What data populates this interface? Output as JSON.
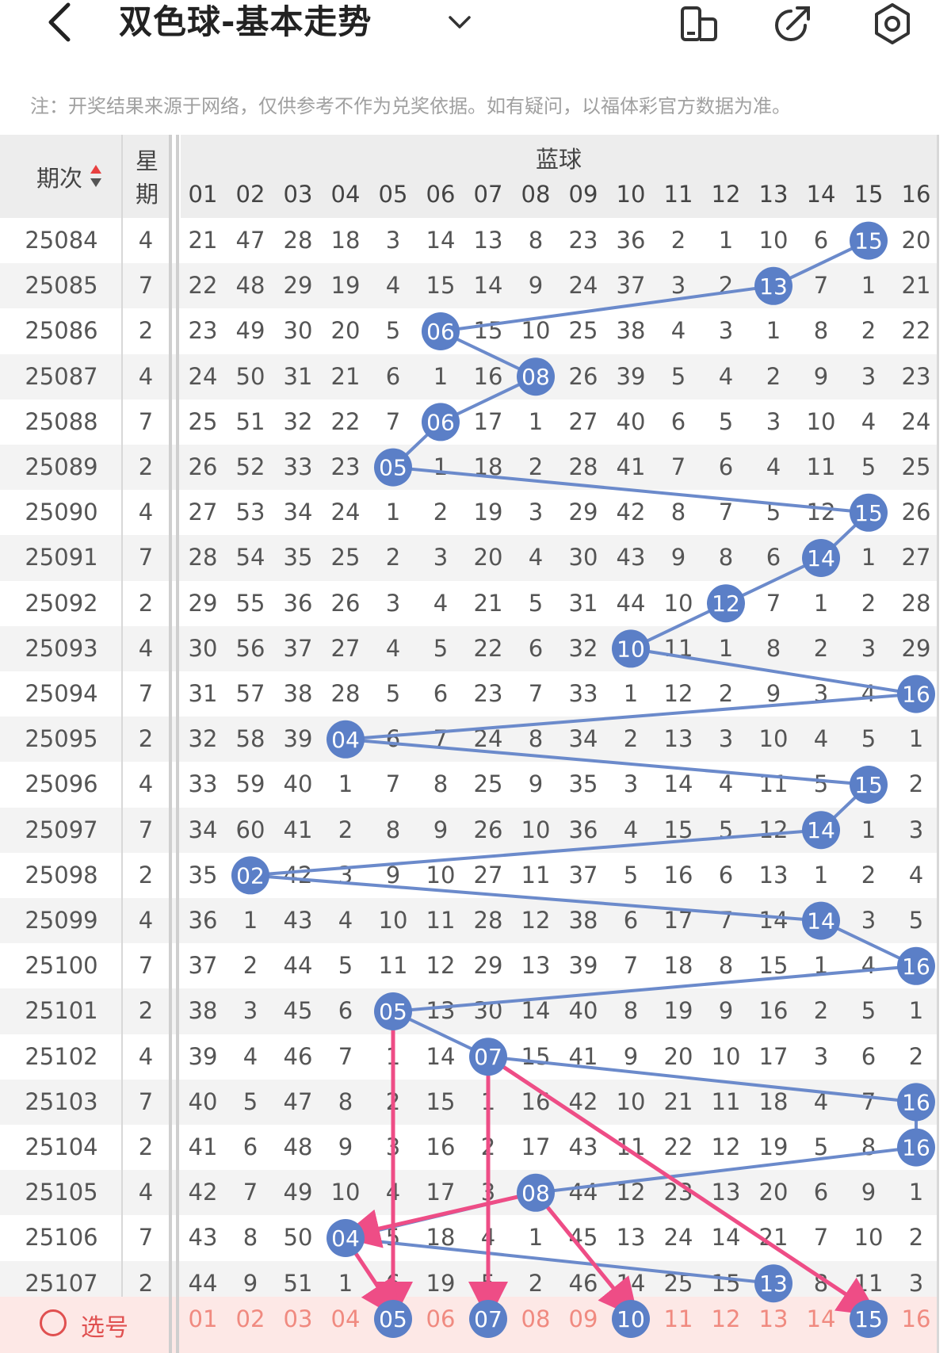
{
  "header": {
    "title": "双色球-基本走势",
    "notice": "注：开奖结果来源于网络，仅供参考不作为兑奖依据。如有疑问，以福体彩官方数据为准。"
  },
  "table": {
    "col_issue_label": "期次",
    "col_week_label_1": "星",
    "col_week_label_2": "期",
    "blue_label": "蓝球",
    "numbers": [
      "01",
      "02",
      "03",
      "04",
      "05",
      "06",
      "07",
      "08",
      "09",
      "10",
      "11",
      "12",
      "13",
      "14",
      "15",
      "16"
    ],
    "rows": [
      {
        "issue": "25084",
        "week": "4",
        "cells": [
          "21",
          "47",
          "28",
          "18",
          "3",
          "14",
          "13",
          "8",
          "23",
          "36",
          "2",
          "1",
          "10",
          "6",
          "15",
          "20"
        ],
        "hit": 15
      },
      {
        "issue": "25085",
        "week": "7",
        "cells": [
          "22",
          "48",
          "29",
          "19",
          "4",
          "15",
          "14",
          "9",
          "24",
          "37",
          "3",
          "2",
          "13",
          "7",
          "1",
          "21"
        ],
        "hit": 13
      },
      {
        "issue": "25086",
        "week": "2",
        "cells": [
          "23",
          "49",
          "30",
          "20",
          "5",
          "06",
          "15",
          "10",
          "25",
          "38",
          "4",
          "3",
          "1",
          "8",
          "2",
          "22"
        ],
        "hit": 6
      },
      {
        "issue": "25087",
        "week": "4",
        "cells": [
          "24",
          "50",
          "31",
          "21",
          "6",
          "1",
          "16",
          "08",
          "26",
          "39",
          "5",
          "4",
          "2",
          "9",
          "3",
          "23"
        ],
        "hit": 8
      },
      {
        "issue": "25088",
        "week": "7",
        "cells": [
          "25",
          "51",
          "32",
          "22",
          "7",
          "06",
          "17",
          "1",
          "27",
          "40",
          "6",
          "5",
          "3",
          "10",
          "4",
          "24"
        ],
        "hit": 6
      },
      {
        "issue": "25089",
        "week": "2",
        "cells": [
          "26",
          "52",
          "33",
          "23",
          "05",
          "1",
          "18",
          "2",
          "28",
          "41",
          "7",
          "6",
          "4",
          "11",
          "5",
          "25"
        ],
        "hit": 5
      },
      {
        "issue": "25090",
        "week": "4",
        "cells": [
          "27",
          "53",
          "34",
          "24",
          "1",
          "2",
          "19",
          "3",
          "29",
          "42",
          "8",
          "7",
          "5",
          "12",
          "15",
          "26"
        ],
        "hit": 15
      },
      {
        "issue": "25091",
        "week": "7",
        "cells": [
          "28",
          "54",
          "35",
          "25",
          "2",
          "3",
          "20",
          "4",
          "30",
          "43",
          "9",
          "8",
          "6",
          "14",
          "1",
          "27"
        ],
        "hit": 14
      },
      {
        "issue": "25092",
        "week": "2",
        "cells": [
          "29",
          "55",
          "36",
          "26",
          "3",
          "4",
          "21",
          "5",
          "31",
          "44",
          "10",
          "12",
          "7",
          "1",
          "2",
          "28"
        ],
        "hit": 12
      },
      {
        "issue": "25093",
        "week": "4",
        "cells": [
          "30",
          "56",
          "37",
          "27",
          "4",
          "5",
          "22",
          "6",
          "32",
          "10",
          "11",
          "1",
          "8",
          "2",
          "3",
          "29"
        ],
        "hit": 10
      },
      {
        "issue": "25094",
        "week": "7",
        "cells": [
          "31",
          "57",
          "38",
          "28",
          "5",
          "6",
          "23",
          "7",
          "33",
          "1",
          "12",
          "2",
          "9",
          "3",
          "4",
          "16"
        ],
        "hit": 16
      },
      {
        "issue": "25095",
        "week": "2",
        "cells": [
          "32",
          "58",
          "39",
          "04",
          "6",
          "7",
          "24",
          "8",
          "34",
          "2",
          "13",
          "3",
          "10",
          "4",
          "5",
          "1"
        ],
        "hit": 4
      },
      {
        "issue": "25096",
        "week": "4",
        "cells": [
          "33",
          "59",
          "40",
          "1",
          "7",
          "8",
          "25",
          "9",
          "35",
          "3",
          "14",
          "4",
          "11",
          "5",
          "15",
          "2"
        ],
        "hit": 15
      },
      {
        "issue": "25097",
        "week": "7",
        "cells": [
          "34",
          "60",
          "41",
          "2",
          "8",
          "9",
          "26",
          "10",
          "36",
          "4",
          "15",
          "5",
          "12",
          "14",
          "1",
          "3"
        ],
        "hit": 14
      },
      {
        "issue": "25098",
        "week": "2",
        "cells": [
          "35",
          "02",
          "42",
          "3",
          "9",
          "10",
          "27",
          "11",
          "37",
          "5",
          "16",
          "6",
          "13",
          "1",
          "2",
          "4"
        ],
        "hit": 2
      },
      {
        "issue": "25099",
        "week": "4",
        "cells": [
          "36",
          "1",
          "43",
          "4",
          "10",
          "11",
          "28",
          "12",
          "38",
          "6",
          "17",
          "7",
          "14",
          "14",
          "3",
          "5"
        ],
        "hit": 14
      },
      {
        "issue": "25100",
        "week": "7",
        "cells": [
          "37",
          "2",
          "44",
          "5",
          "11",
          "12",
          "29",
          "13",
          "39",
          "7",
          "18",
          "8",
          "15",
          "1",
          "4",
          "16"
        ],
        "hit": 16
      },
      {
        "issue": "25101",
        "week": "2",
        "cells": [
          "38",
          "3",
          "45",
          "6",
          "05",
          "13",
          "30",
          "14",
          "40",
          "8",
          "19",
          "9",
          "16",
          "2",
          "5",
          "1"
        ],
        "hit": 5
      },
      {
        "issue": "25102",
        "week": "4",
        "cells": [
          "39",
          "4",
          "46",
          "7",
          "1",
          "14",
          "07",
          "15",
          "41",
          "9",
          "20",
          "10",
          "17",
          "3",
          "6",
          "2"
        ],
        "hit": 7
      },
      {
        "issue": "25103",
        "week": "7",
        "cells": [
          "40",
          "5",
          "47",
          "8",
          "2",
          "15",
          "1",
          "16",
          "42",
          "10",
          "21",
          "11",
          "18",
          "4",
          "7",
          "16"
        ],
        "hit": 16
      },
      {
        "issue": "25104",
        "week": "2",
        "cells": [
          "41",
          "6",
          "48",
          "9",
          "3",
          "16",
          "2",
          "17",
          "43",
          "11",
          "22",
          "12",
          "19",
          "5",
          "8",
          "16"
        ],
        "hit": 16
      },
      {
        "issue": "25105",
        "week": "4",
        "cells": [
          "42",
          "7",
          "49",
          "10",
          "4",
          "17",
          "3",
          "08",
          "44",
          "12",
          "23",
          "13",
          "20",
          "6",
          "9",
          "1"
        ],
        "hit": 8
      },
      {
        "issue": "25106",
        "week": "7",
        "cells": [
          "43",
          "8",
          "50",
          "04",
          "5",
          "18",
          "4",
          "1",
          "45",
          "13",
          "24",
          "14",
          "21",
          "7",
          "10",
          "2"
        ],
        "hit": 4
      },
      {
        "issue": "25107",
        "week": "2",
        "cells": [
          "44",
          "9",
          "51",
          "1",
          "6",
          "19",
          "5",
          "2",
          "46",
          "14",
          "25",
          "15",
          "13",
          "8",
          "11",
          "3"
        ],
        "hit": 13
      }
    ],
    "pick_label": "选号",
    "picked": [
      5,
      7,
      10,
      15
    ]
  },
  "colors": {
    "ball_blue": "#5b7fc7",
    "trend_line": "#6b8acb",
    "prediction_arrow": "#ee4d86",
    "pick_row_bg": "#fde8e6",
    "pick_text": "#f08a80"
  },
  "predictions": [
    {
      "from_row": 17,
      "to_pick": 5
    },
    {
      "from_row": 18,
      "to_pick": 7
    },
    {
      "from_row": 18,
      "to_pick": 15
    },
    {
      "from_row": 21,
      "to_pick": 10
    },
    {
      "from_row": 21,
      "to_pick": 4
    },
    {
      "from_row": 22,
      "to_pick": 5
    }
  ]
}
